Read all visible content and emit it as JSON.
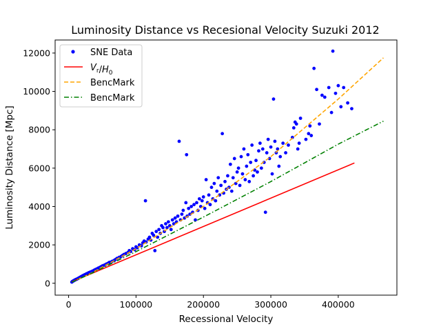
{
  "chart_data": {
    "type": "scatter",
    "title": "Luminosity Distance vs Recesional Velocity Suzuki 2012",
    "xlabel": "Recessional Velocity",
    "ylabel": "Luminosity Distance [Mpc]",
    "xlim": [
      -20000,
      487000
    ],
    "ylim": [
      -620,
      12680
    ],
    "xticks": [
      0,
      100000,
      200000,
      300000,
      400000
    ],
    "yticks": [
      0,
      2000,
      4000,
      6000,
      8000,
      10000,
      12000
    ],
    "grid": false,
    "legend_position": "top-left",
    "legend": [
      {
        "label": "SNE Data",
        "color": "#0000ff",
        "style": "marker"
      },
      {
        "label": "V_r/H_0",
        "color": "#ff0000",
        "style": "solid"
      },
      {
        "label": "BencMark",
        "color": "#ffa500",
        "style": "dashed"
      },
      {
        "label": "BencMark",
        "color": "#008000",
        "style": "dashdot"
      }
    ],
    "series": [
      {
        "name": "SNE Data",
        "type": "scatter",
        "color": "#0000ff",
        "points": [
          [
            4800,
            60
          ],
          [
            5200,
            80
          ],
          [
            5600,
            90
          ],
          [
            6000,
            100
          ],
          [
            6500,
            110
          ],
          [
            7000,
            120
          ],
          [
            7500,
            130
          ],
          [
            8000,
            140
          ],
          [
            8500,
            150
          ],
          [
            9000,
            160
          ],
          [
            9500,
            170
          ],
          [
            10000,
            180
          ],
          [
            10500,
            190
          ],
          [
            11000,
            200
          ],
          [
            12000,
            210
          ],
          [
            13000,
            230
          ],
          [
            14000,
            250
          ],
          [
            15000,
            270
          ],
          [
            16000,
            290
          ],
          [
            17000,
            310
          ],
          [
            18000,
            330
          ],
          [
            19000,
            350
          ],
          [
            20000,
            370
          ],
          [
            21000,
            390
          ],
          [
            22000,
            410
          ],
          [
            23000,
            430
          ],
          [
            24000,
            440
          ],
          [
            25000,
            460
          ],
          [
            26000,
            480
          ],
          [
            27000,
            500
          ],
          [
            28000,
            510
          ],
          [
            29000,
            530
          ],
          [
            30000,
            550
          ],
          [
            31000,
            560
          ],
          [
            32000,
            580
          ],
          [
            34000,
            610
          ],
          [
            36000,
            640
          ],
          [
            38000,
            680
          ],
          [
            40000,
            720
          ],
          [
            42000,
            750
          ],
          [
            44000,
            790
          ],
          [
            46000,
            820
          ],
          [
            48000,
            860
          ],
          [
            50000,
            900
          ],
          [
            52000,
            930
          ],
          [
            54000,
            960
          ],
          [
            56000,
            1000
          ],
          [
            58000,
            1030
          ],
          [
            60000,
            1080
          ],
          [
            62000,
            1100
          ],
          [
            65000,
            1150
          ],
          [
            68000,
            1200
          ],
          [
            70000,
            1250
          ],
          [
            72000,
            1300
          ],
          [
            75000,
            1350
          ],
          [
            78000,
            1400
          ],
          [
            80000,
            1450
          ],
          [
            82000,
            1500
          ],
          [
            85000,
            1550
          ],
          [
            88000,
            1600
          ],
          [
            90000,
            1700
          ],
          [
            92000,
            1650
          ],
          [
            95000,
            1800
          ],
          [
            98000,
            1750
          ],
          [
            100000,
            1900
          ],
          [
            102000,
            1850
          ],
          [
            105000,
            2000
          ],
          [
            108000,
            1950
          ],
          [
            110000,
            2100
          ],
          [
            112000,
            2200
          ],
          [
            114000,
            4300
          ],
          [
            115000,
            2150
          ],
          [
            118000,
            2300
          ],
          [
            120000,
            2400
          ],
          [
            122000,
            2250
          ],
          [
            124000,
            2600
          ],
          [
            126000,
            2500
          ],
          [
            128000,
            1700
          ],
          [
            130000,
            2700
          ],
          [
            132000,
            2400
          ],
          [
            134000,
            2800
          ],
          [
            136000,
            2600
          ],
          [
            138000,
            3000
          ],
          [
            140000,
            2900
          ],
          [
            142000,
            2700
          ],
          [
            144000,
            3100
          ],
          [
            146000,
            2900
          ],
          [
            148000,
            3200
          ],
          [
            150000,
            3000
          ],
          [
            152000,
            2800
          ],
          [
            154000,
            3300
          ],
          [
            156000,
            3100
          ],
          [
            158000,
            3400
          ],
          [
            160000,
            3200
          ],
          [
            162000,
            3500
          ],
          [
            164000,
            7400
          ],
          [
            166000,
            3300
          ],
          [
            168000,
            3600
          ],
          [
            170000,
            3800
          ],
          [
            172000,
            3400
          ],
          [
            174000,
            4200
          ],
          [
            175000,
            6700
          ],
          [
            176000,
            3500
          ],
          [
            178000,
            3900
          ],
          [
            180000,
            3600
          ],
          [
            182000,
            4000
          ],
          [
            184000,
            3700
          ],
          [
            186000,
            4100
          ],
          [
            188000,
            3300
          ],
          [
            190000,
            4200
          ],
          [
            192000,
            3800
          ],
          [
            194000,
            4400
          ],
          [
            196000,
            4000
          ],
          [
            198000,
            4300
          ],
          [
            200000,
            4500
          ],
          [
            202000,
            3900
          ],
          [
            204000,
            5400
          ],
          [
            206000,
            4200
          ],
          [
            208000,
            4600
          ],
          [
            210000,
            4100
          ],
          [
            212000,
            5000
          ],
          [
            214000,
            4400
          ],
          [
            216000,
            5200
          ],
          [
            218000,
            4300
          ],
          [
            220000,
            4800
          ],
          [
            222000,
            5500
          ],
          [
            224000,
            4600
          ],
          [
            226000,
            5100
          ],
          [
            228000,
            7800
          ],
          [
            230000,
            4700
          ],
          [
            232000,
            5300
          ],
          [
            234000,
            4900
          ],
          [
            236000,
            5600
          ],
          [
            238000,
            5000
          ],
          [
            240000,
            6200
          ],
          [
            242000,
            4800
          ],
          [
            244000,
            5500
          ],
          [
            246000,
            6500
          ],
          [
            248000,
            5200
          ],
          [
            250000,
            5800
          ],
          [
            252000,
            6000
          ],
          [
            254000,
            5100
          ],
          [
            256000,
            6600
          ],
          [
            258000,
            5700
          ],
          [
            260000,
            7000
          ],
          [
            262000,
            5400
          ],
          [
            264000,
            6100
          ],
          [
            266000,
            6700
          ],
          [
            268000,
            5300
          ],
          [
            270000,
            6300
          ],
          [
            272000,
            7200
          ],
          [
            274000,
            5600
          ],
          [
            276000,
            5900
          ],
          [
            278000,
            6400
          ],
          [
            280000,
            5800
          ],
          [
            282000,
            6900
          ],
          [
            284000,
            7300
          ],
          [
            286000,
            6000
          ],
          [
            288000,
            7000
          ],
          [
            290000,
            6300
          ],
          [
            292000,
            3700
          ],
          [
            294000,
            6800
          ],
          [
            296000,
            7500
          ],
          [
            298000,
            6500
          ],
          [
            300000,
            7100
          ],
          [
            302000,
            5700
          ],
          [
            304000,
            9600
          ],
          [
            306000,
            7400
          ],
          [
            308000,
            6800
          ],
          [
            310000,
            7000
          ],
          [
            312000,
            6100
          ],
          [
            314000,
            6600
          ],
          [
            318000,
            7300
          ],
          [
            322000,
            6800
          ],
          [
            326000,
            7200
          ],
          [
            332000,
            7600
          ],
          [
            334000,
            8100
          ],
          [
            336000,
            8400
          ],
          [
            338000,
            8300
          ],
          [
            340000,
            7000
          ],
          [
            342000,
            7300
          ],
          [
            344000,
            8600
          ],
          [
            352000,
            7500
          ],
          [
            356000,
            7800
          ],
          [
            358000,
            8200
          ],
          [
            360000,
            7700
          ],
          [
            364000,
            11200
          ],
          [
            368000,
            10100
          ],
          [
            372000,
            8300
          ],
          [
            376000,
            9800
          ],
          [
            380000,
            9700
          ],
          [
            386000,
            10200
          ],
          [
            390000,
            8900
          ],
          [
            392000,
            12100
          ],
          [
            396000,
            9900
          ],
          [
            400000,
            10300
          ],
          [
            404000,
            9200
          ],
          [
            408000,
            10200
          ],
          [
            414000,
            9400
          ],
          [
            420000,
            9100
          ]
        ]
      },
      {
        "name": "V_r/H_0",
        "type": "line",
        "color": "#ff0000",
        "style": "solid",
        "x": [
          4800,
          424000
        ],
        "y": [
          75,
          6270
        ]
      },
      {
        "name": "BencMark",
        "type": "line",
        "color": "#ffa500",
        "style": "dashed",
        "x": [
          4800,
          30000,
          100000,
          200000,
          300000,
          400000,
          467000
        ],
        "y": [
          60,
          460,
          1800,
          4000,
          6600,
          9600,
          11750
        ]
      },
      {
        "name": "BencMark",
        "type": "line",
        "color": "#008000",
        "style": "dashdot",
        "x": [
          4800,
          30000,
          100000,
          200000,
          300000,
          400000,
          467000
        ],
        "y": [
          60,
          450,
          1650,
          3450,
          5300,
          7250,
          8450
        ]
      }
    ]
  }
}
